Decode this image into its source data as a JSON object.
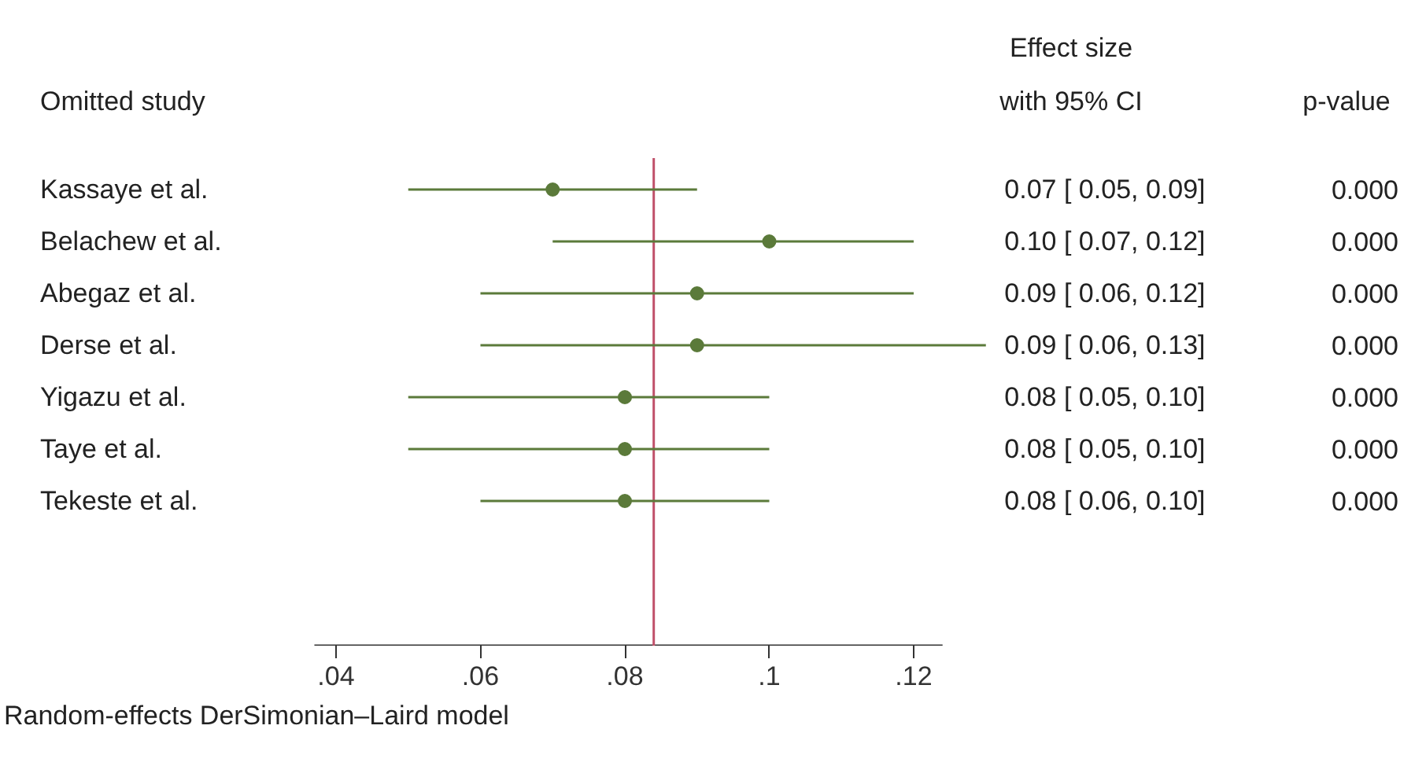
{
  "chart_data": {
    "type": "scatter",
    "orientation": "horizontal",
    "ylabel": "Omitted study",
    "categories": [
      "Kassaye et al.",
      "Belachew et al.",
      "Abegaz et al.",
      "Derse et al.",
      "Yigazu et al.",
      "Taye et al.",
      "Tekeste et al."
    ],
    "values": [
      0.07,
      0.1,
      0.09,
      0.09,
      0.08,
      0.08,
      0.08
    ],
    "errors": [
      [
        0.05,
        0.09
      ],
      [
        0.07,
        0.12
      ],
      [
        0.06,
        0.12
      ],
      [
        0.06,
        0.13
      ],
      [
        0.05,
        0.1
      ],
      [
        0.05,
        0.1
      ],
      [
        0.06,
        0.1
      ]
    ],
    "color": "#5b7a3a",
    "marker": "circle",
    "value_labels": [
      "0.07 [ 0.05,  0.09]",
      "0.10 [ 0.07,  0.12]",
      "0.09 [ 0.06,  0.12]",
      "0.09 [ 0.06,  0.13]",
      "0.08 [ 0.05,  0.10]",
      "0.08 [ 0.05,  0.10]",
      "0.08 [ 0.06,  0.10]"
    ],
    "xlim": [
      0.037,
      0.124
    ],
    "xticks": [
      {
        "value": 0.04,
        "label": ".04"
      },
      {
        "value": 0.06,
        "label": ".06"
      },
      {
        "value": 0.08,
        "label": ".08"
      },
      {
        "value": 0.1,
        "label": ".1"
      },
      {
        "value": 0.12,
        "label": ".12"
      }
    ],
    "ref_lines": [
      {
        "axis": "x",
        "value": 0.084,
        "color": "#c0506a"
      }
    ],
    "grid": false,
    "annotations": [
      "Effect size\nwith 95% CI",
      "p-value",
      "0.000",
      "0.000",
      "0.000",
      "0.000",
      "0.000",
      "0.000",
      "0.000",
      "Random-effects DerSimonian–Laird model"
    ]
  }
}
